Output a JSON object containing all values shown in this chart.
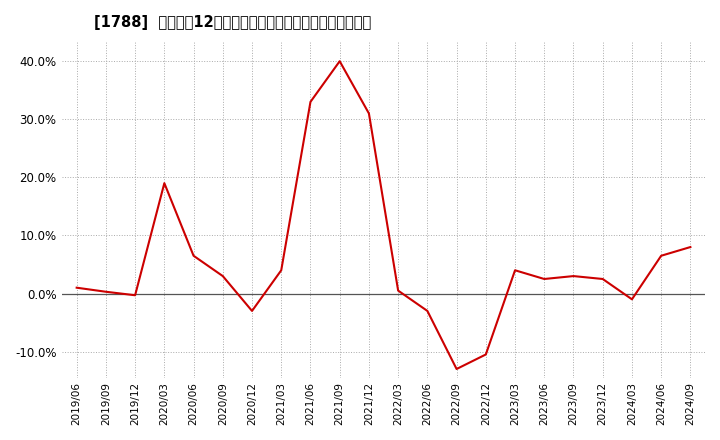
{
  "title": "[1788]  売上高の12か月移動合計の対前年同期増減率の推移",
  "line_color": "#cc0000",
  "background_color": "#ffffff",
  "plot_bg_color": "#ffffff",
  "grid_color": "#aaaaaa",
  "ylim": [
    -0.145,
    0.435
  ],
  "yticks": [
    -0.1,
    0.0,
    0.1,
    0.2,
    0.3,
    0.4
  ],
  "dates": [
    "2019/06",
    "2019/09",
    "2019/12",
    "2020/03",
    "2020/06",
    "2020/09",
    "2020/12",
    "2021/03",
    "2021/06",
    "2021/09",
    "2021/12",
    "2022/03",
    "2022/06",
    "2022/09",
    "2022/12",
    "2023/03",
    "2023/06",
    "2023/09",
    "2023/12",
    "2024/03",
    "2024/06",
    "2024/09"
  ],
  "values": [
    0.01,
    0.003,
    -0.003,
    0.19,
    0.065,
    0.03,
    -0.03,
    0.04,
    0.33,
    0.4,
    0.31,
    0.005,
    -0.03,
    -0.13,
    -0.105,
    0.04,
    0.025,
    0.03,
    0.025,
    -0.01,
    0.065,
    0.08
  ]
}
